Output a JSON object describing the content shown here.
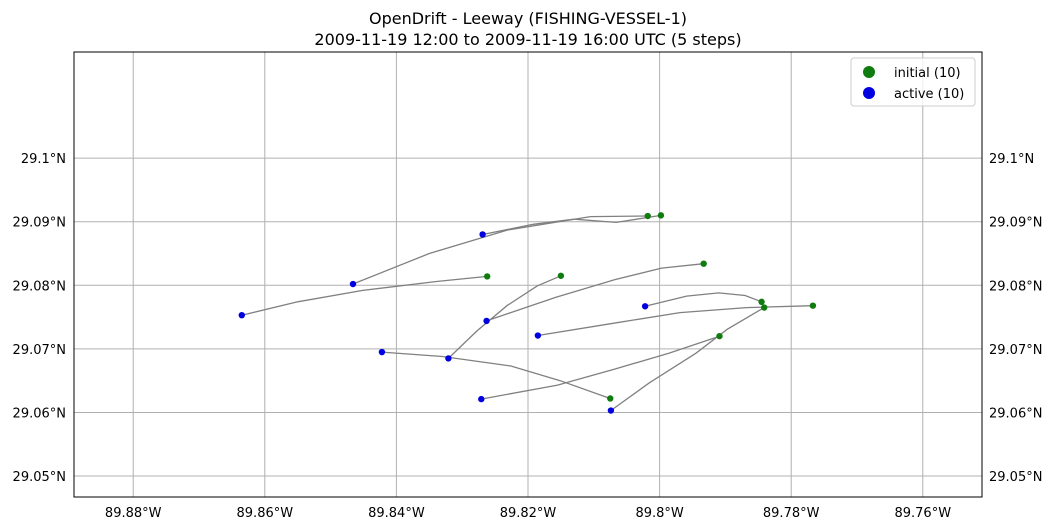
{
  "chart_data": {
    "type": "line",
    "title": "OpenDrift - Leeway (FISHING-VESSEL-1)",
    "subtitle": "2009-11-19 12:00 to 2009-11-19 16:00 UTC (5 steps)",
    "xlim": [
      -89.889,
      -89.751
    ],
    "ylim": [
      29.0467,
      29.1167
    ],
    "x_ticks": [
      -89.88,
      -89.86,
      -89.84,
      -89.82,
      -89.8,
      -89.78,
      -89.76
    ],
    "x_tick_labels": [
      "89.88°W",
      "89.86°W",
      "89.84°W",
      "89.82°W",
      "89.8°W",
      "89.78°W",
      "89.76°W"
    ],
    "y_ticks": [
      29.05,
      29.06,
      29.07,
      29.08,
      29.09,
      29.1
    ],
    "y_tick_labels": [
      "29.05°N",
      "29.06°N",
      "29.07°N",
      "29.08°N",
      "29.09°N",
      "29.1°N"
    ],
    "grid": true,
    "legend_position": "top-right",
    "legend": [
      {
        "label": "initial (10)",
        "color": "#107c10"
      },
      {
        "label": "active (10)",
        "color": "#0000e0"
      }
    ],
    "track_color": "#808080",
    "trajectories": [
      {
        "lon": [
          -89.7998,
          -89.8066,
          -89.813,
          -89.8192,
          -89.8269
        ],
        "lat": [
          29.091,
          29.0899,
          29.0904,
          29.0896,
          29.088
        ]
      },
      {
        "lon": [
          -89.8018,
          -89.8105,
          -89.8231,
          -89.835,
          -89.8466
        ],
        "lat": [
          29.0909,
          29.0908,
          29.0887,
          29.085,
          29.0802
        ]
      },
      {
        "lon": [
          -89.8262,
          -89.8339,
          -89.8451,
          -89.855,
          -89.8635
        ],
        "lat": [
          29.0814,
          29.0806,
          29.0792,
          29.0774,
          29.0753
        ]
      },
      {
        "lon": [
          -89.815,
          -89.8186,
          -89.8232,
          -89.8278,
          -89.8321
        ],
        "lat": [
          29.0815,
          29.0799,
          29.0768,
          29.0728,
          29.0685
        ]
      },
      {
        "lon": [
          -89.7933,
          -89.7997,
          -89.8068,
          -89.8158,
          -89.8263
        ],
        "lat": [
          29.0834,
          29.0827,
          29.0809,
          29.0781,
          29.0744
        ]
      },
      {
        "lon": [
          -89.7845,
          -89.787,
          -89.791,
          -89.7959,
          -89.8022
        ],
        "lat": [
          29.0774,
          29.0784,
          29.0788,
          29.0783,
          29.0767
        ]
      },
      {
        "lon": [
          -89.7767,
          -89.7868,
          -89.7969,
          -89.8066,
          -89.8185
        ],
        "lat": [
          29.0768,
          29.0765,
          29.0757,
          29.0741,
          29.0721
        ]
      },
      {
        "lon": [
          -89.7909,
          -89.7986,
          -89.8069,
          -89.8155,
          -89.8271
        ],
        "lat": [
          29.072,
          29.0693,
          29.0668,
          29.0643,
          29.0621
        ]
      },
      {
        "lon": [
          -89.7841,
          -89.7897,
          -89.7945,
          -89.8015,
          -89.8074
        ],
        "lat": [
          29.0765,
          29.0731,
          29.0693,
          29.0647,
          29.0603
        ]
      },
      {
        "lon": [
          -89.8075,
          -89.8151,
          -89.8226,
          -89.833,
          -89.8422
        ],
        "lat": [
          29.0622,
          29.065,
          29.0673,
          29.0688,
          29.0695
        ]
      }
    ]
  }
}
